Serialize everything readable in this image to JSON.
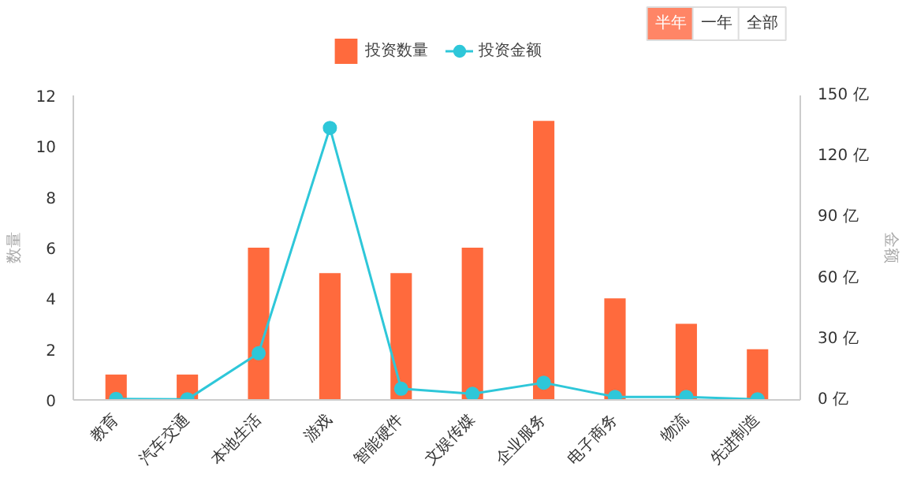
{
  "chart_data": {
    "type": "bar",
    "categories": [
      "教育",
      "汽车交通",
      "本地生活",
      "游戏",
      "智能硬件",
      "文娱传媒",
      "企业服务",
      "电子商务",
      "物流",
      "先进制造"
    ],
    "series": [
      {
        "name": "投资数量",
        "color": "#ff6a3d",
        "values": [
          1,
          1,
          6,
          5,
          5,
          6,
          11,
          4,
          3,
          2
        ]
      },
      {
        "name": "投资金额",
        "type": "line",
        "axis": "y2",
        "color": "#2ec7d9",
        "values": [
          0.5,
          0.3,
          23,
          134,
          5.5,
          3,
          8.5,
          1.5,
          1.5,
          0.3
        ]
      }
    ],
    "ylabel": "数量",
    "y2label": "金额",
    "ylim": [
      0,
      12
    ],
    "yticks": [
      0,
      2,
      4,
      6,
      8,
      10,
      12
    ],
    "y2lim": [
      0,
      150
    ],
    "y2ticks": [
      {
        "value": 0,
        "label": "0 亿"
      },
      {
        "value": 30,
        "label": "30 亿"
      },
      {
        "value": 60,
        "label": "60 亿"
      },
      {
        "value": 90,
        "label": "90 亿"
      },
      {
        "value": 120,
        "label": "120 亿"
      },
      {
        "value": 150,
        "label": "150 亿"
      }
    ],
    "marker": "circle",
    "grid": false,
    "legend": "top",
    "annotations": [
      "半年",
      "一年",
      "全部"
    ]
  }
}
